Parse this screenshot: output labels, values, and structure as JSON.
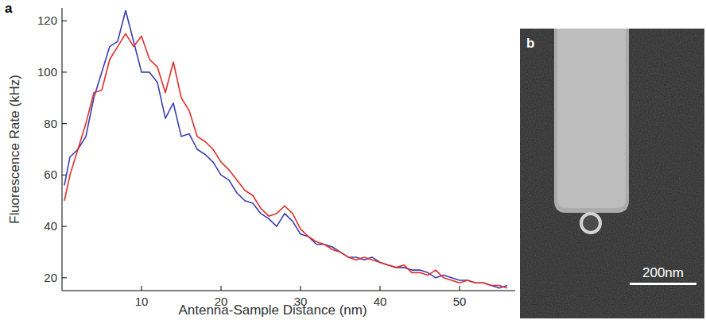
{
  "chart_data": {
    "type": "line",
    "panel_label": "a",
    "x_label": "Antenna-Sample Distance (nm)",
    "y_label": "Fluorescence Rate (kHz)",
    "x": [
      0.3,
      1,
      2,
      3,
      4,
      5,
      6,
      7,
      8,
      9,
      10,
      11,
      12,
      13,
      14,
      15,
      16,
      17,
      18,
      19,
      20,
      21,
      22,
      23,
      24,
      25,
      26,
      27,
      28,
      29,
      30,
      31,
      32,
      33,
      34,
      35,
      36,
      37,
      38,
      39,
      40,
      41,
      42,
      43,
      44,
      45,
      46,
      47,
      48,
      49,
      50,
      51,
      52,
      53,
      54,
      55,
      56
    ],
    "series": [
      {
        "color": "#3a3db0",
        "values": [
          56,
          67,
          70,
          75,
          90,
          100,
          110,
          112,
          124,
          112,
          100,
          100,
          96,
          82,
          88,
          75,
          76,
          70,
          68,
          65,
          60,
          58,
          53,
          50,
          49,
          45,
          43,
          40,
          45,
          42,
          37,
          36,
          33,
          33,
          32,
          30,
          28,
          28,
          27,
          28,
          26,
          25,
          24,
          24,
          23,
          23,
          22,
          20,
          21,
          20,
          19,
          19,
          18,
          18,
          17,
          16,
          17
        ]
      },
      {
        "color": "#e0302a",
        "values": [
          50,
          60,
          70,
          80,
          92,
          93,
          105,
          110,
          115,
          110,
          114,
          105,
          102,
          92,
          104,
          90,
          85,
          75,
          73,
          70,
          65,
          62,
          58,
          54,
          52,
          47,
          44,
          45,
          48,
          45,
          39,
          36,
          34,
          33,
          31,
          30,
          28,
          27,
          28,
          27,
          26,
          25,
          24,
          25,
          22,
          22,
          21,
          23,
          20,
          19,
          18,
          19,
          18,
          18,
          17,
          17,
          16
        ]
      }
    ],
    "xlim": [
      0,
      57
    ],
    "ylim": [
      15,
      125
    ],
    "xticks": [
      10,
      20,
      30,
      40,
      50
    ],
    "yticks": [
      20,
      40,
      60,
      80,
      100,
      120
    ]
  },
  "image_panel": {
    "panel_label": "b",
    "scale_bar_label": "200nm"
  }
}
